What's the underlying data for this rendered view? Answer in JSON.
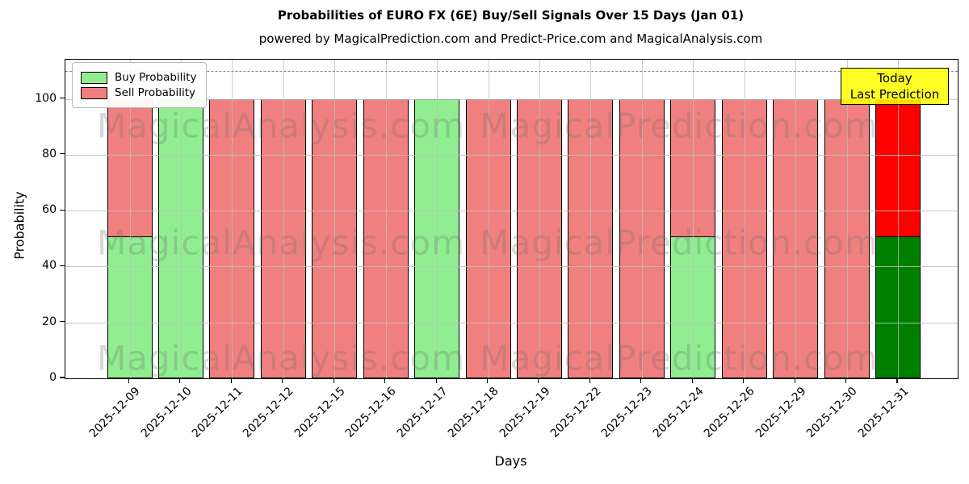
{
  "title": "Probabilities of EURO FX (6E) Buy/Sell Signals Over 15 Days (Jan 01)",
  "subtitle": "powered by MagicalPrediction.com and Predict-Price.com and MagicalAnalysis.com",
  "watermarks": {
    "left_text": "MagicalAnalysis.com",
    "right_text": "MagicalPrediction.com"
  },
  "annotation": {
    "line1": "Today",
    "line2": "Last Prediction",
    "bg_color": "#FFFF00"
  },
  "legend": {
    "items": [
      {
        "label": "Buy Probability",
        "color": "#90EE90"
      },
      {
        "label": "Sell Probability",
        "color": "#F08080"
      }
    ]
  },
  "axes": {
    "ylabel": "Probability",
    "xlabel": "Days",
    "yticks": [
      0,
      20,
      40,
      60,
      80,
      100
    ],
    "ylim": [
      0,
      114
    ],
    "dashed_line_y": 110,
    "grid": true
  },
  "chart_data": {
    "type": "bar",
    "stacked": true,
    "title": "Probabilities of EURO FX (6E) Buy/Sell Signals Over 15 Days (Jan 01)",
    "xlabel": "Days",
    "ylabel": "Probability",
    "ylim": [
      0,
      114
    ],
    "legend_position": "upper left",
    "categories": [
      "2025-12-09",
      "2025-12-10",
      "2025-12-11",
      "2025-12-12",
      "2025-12-15",
      "2025-12-16",
      "2025-12-17",
      "2025-12-18",
      "2025-12-19",
      "2025-12-22",
      "2025-12-23",
      "2025-12-24",
      "2025-12-26",
      "2025-12-29",
      "2025-12-30",
      "2025-12-31"
    ],
    "series": [
      {
        "name": "Buy Probability",
        "color": "#90EE90",
        "values": [
          51,
          100,
          0,
          0,
          0,
          0,
          100,
          0,
          0,
          0,
          0,
          51,
          0,
          0,
          0,
          51
        ]
      },
      {
        "name": "Sell Probability",
        "color": "#F08080",
        "values": [
          49,
          0,
          100,
          100,
          100,
          100,
          0,
          100,
          100,
          100,
          100,
          49,
          100,
          100,
          100,
          49
        ]
      }
    ],
    "today_index": 15,
    "today_colors": {
      "buy": "#008000",
      "sell": "#FF0000"
    },
    "bar_edge_color": "#000000"
  }
}
